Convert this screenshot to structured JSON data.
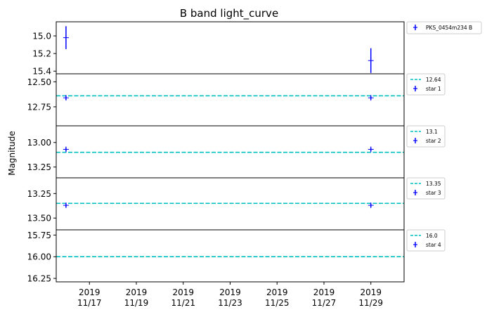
{
  "chart_data": {
    "type": "scatter",
    "title": "B band light_curve",
    "ylabel": "Magnitude",
    "xlabel": "",
    "x_axis": {
      "unit": "date",
      "range": [
        "2019-11-15T14:00",
        "2019-11-30T10:00"
      ],
      "ticks": [
        {
          "value": "2019-11-17",
          "label": [
            "2019",
            "11/17"
          ]
        },
        {
          "value": "2019-11-19",
          "label": [
            "2019",
            "11/19"
          ]
        },
        {
          "value": "2019-11-21",
          "label": [
            "2019",
            "11/21"
          ]
        },
        {
          "value": "2019-11-23",
          "label": [
            "2019",
            "11/23"
          ]
        },
        {
          "value": "2019-11-25",
          "label": [
            "2019",
            "11/25"
          ]
        },
        {
          "value": "2019-11-27",
          "label": [
            "2019",
            "11/27"
          ]
        },
        {
          "value": "2019-11-29",
          "label": [
            "2019",
            "11/29"
          ]
        }
      ]
    },
    "marker_color": "#0000ff",
    "reference_line_color": "#00bfbf",
    "panels": [
      {
        "name": "PKS_0454m234 B",
        "y_inverted": true,
        "ylim": [
          14.84,
          15.43
        ],
        "yticks": [
          15.0,
          15.2,
          15.4
        ],
        "ytick_labels": [
          "15.0",
          "15.2",
          "15.4"
        ],
        "reference": null,
        "points": [
          {
            "x": "2019-11-16T00:00",
            "y": 15.02,
            "yerr": 0.13
          },
          {
            "x": "2019-11-29T00:00",
            "y": 15.28,
            "yerr": 0.14
          }
        ]
      },
      {
        "name": "star 1",
        "y_inverted": true,
        "ylim": [
          12.42,
          12.94
        ],
        "yticks": [
          12.5,
          12.75
        ],
        "ytick_labels": [
          "12.50",
          "12.75"
        ],
        "reference": {
          "value": 12.64,
          "label": "12.64"
        },
        "points": [
          {
            "x": "2019-11-16T00:00",
            "y": 12.66,
            "yerr": 0.02
          },
          {
            "x": "2019-11-29T00:00",
            "y": 12.66,
            "yerr": 0.02
          }
        ]
      },
      {
        "name": "star 2",
        "y_inverted": true,
        "ylim": [
          12.83,
          13.36
        ],
        "yticks": [
          13.0,
          13.25
        ],
        "ytick_labels": [
          "13.00",
          "13.25"
        ],
        "reference": {
          "value": 13.1,
          "label": "13.1"
        },
        "points": [
          {
            "x": "2019-11-16T00:00",
            "y": 13.07,
            "yerr": 0.02
          },
          {
            "x": "2019-11-29T00:00",
            "y": 13.07,
            "yerr": 0.02
          }
        ]
      },
      {
        "name": "star 3",
        "y_inverted": true,
        "ylim": [
          13.09,
          13.62
        ],
        "yticks": [
          13.25,
          13.5
        ],
        "ytick_labels": [
          "13.25",
          "13.50"
        ],
        "reference": {
          "value": 13.35,
          "label": "13.35"
        },
        "points": [
          {
            "x": "2019-11-16T00:00",
            "y": 13.37,
            "yerr": 0.02
          },
          {
            "x": "2019-11-29T00:00",
            "y": 13.37,
            "yerr": 0.02
          }
        ]
      },
      {
        "name": "star 4",
        "y_inverted": true,
        "ylim": [
          15.69,
          16.29
        ],
        "yticks": [
          15.75,
          16.0,
          16.25
        ],
        "ytick_labels": [
          "15.75",
          "16.00",
          "16.25"
        ],
        "reference": {
          "value": 16.0,
          "label": "16.0"
        },
        "points": []
      }
    ]
  }
}
